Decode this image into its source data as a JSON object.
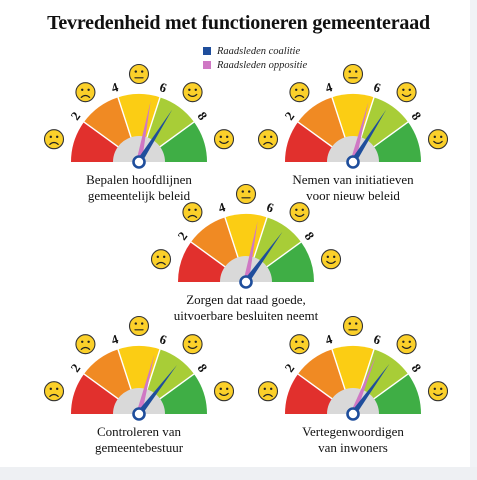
{
  "title": "Tevredenheid met functioneren gemeenteraad",
  "legend": [
    {
      "label": "Raadsleden coalitie",
      "color": "#1f4e9c"
    },
    {
      "label": "Raadsleden oppositie",
      "color": "#cf78c4"
    }
  ],
  "colors": {
    "segments": [
      "#e1302d",
      "#f08a23",
      "#fbcd14",
      "#a8cd37",
      "#3fae45"
    ],
    "face": "#fbd02a",
    "dial": "#d9d9d9",
    "coalition_needle": "#1f4e9c",
    "opposition_needle": "#cf78c4"
  },
  "chart_data": {
    "type": "gauge",
    "scale": [
      0,
      10
    ],
    "ticks": [
      "2",
      "4",
      "6",
      "8"
    ],
    "faces": [
      "sad-face",
      "sad-face",
      "neutral-face",
      "happy-face",
      "happy-face"
    ],
    "series_names": [
      "Raadsleden coalitie",
      "Raadsleden oppositie"
    ],
    "gauges": [
      {
        "label_lines": [
          "Bepalen hoofdlijnen",
          "gemeentelijk beleid"
        ],
        "coalitie": 6.8,
        "oppositie": 5.6
      },
      {
        "label_lines": [
          "Nemen van initiatieven",
          "voor nieuw beleid"
        ],
        "coalitie": 6.8,
        "oppositie": 5.8
      },
      {
        "label_lines": [
          "Zorgen dat raad goede,",
          "uitvoerbare besluiten neemt"
        ],
        "coalitie": 7.0,
        "oppositie": 5.6
      },
      {
        "label_lines": [
          "Controleren van",
          "gemeentebestuur"
        ],
        "coalitie": 7.1,
        "oppositie": 5.8
      },
      {
        "label_lines": [
          "Vertegenwoordigen",
          "van inwoners"
        ],
        "coalitie": 7.0,
        "oppositie": 6.2
      }
    ]
  }
}
